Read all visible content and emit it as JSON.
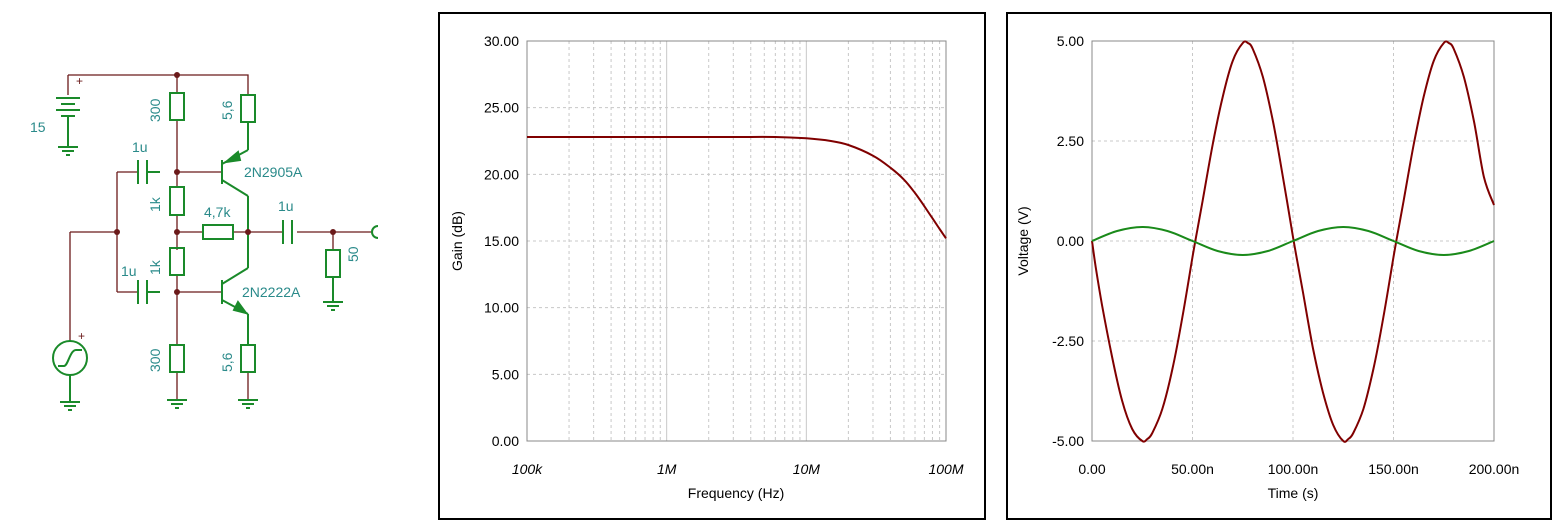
{
  "schematic": {
    "battery_label": "15",
    "battery_plus": "+",
    "source_plus": "+",
    "r_top_left": "300",
    "r_top_right": "5,6",
    "c_top": "1u",
    "q_top": "2N2905A",
    "r_mid_top": "1k",
    "r_feedback": "4,7k",
    "c_out": "1u",
    "r_load": "50",
    "c_bottom": "1u",
    "r_mid_bottom": "1k",
    "q_bottom": "2N2222A",
    "r_bottom_left": "300",
    "r_bottom_right": "5,6"
  },
  "colors": {
    "component": "#1a8a2a",
    "wire": "#6b1a1a",
    "label": "#2a8a8a",
    "series_gain": "#800000",
    "series_out": "#800000",
    "series_in": "#1a8a1a"
  },
  "chart_data": [
    {
      "type": "line",
      "xscale": "log",
      "xlabel": "Frequency (Hz)",
      "ylabel": "Gain (dB)",
      "xlim": [
        100000,
        100000000
      ],
      "ylim": [
        0,
        30
      ],
      "x_ticks": [
        100000,
        1000000,
        10000000,
        100000000
      ],
      "x_tick_labels": [
        "100k",
        "1M",
        "10M",
        "100M"
      ],
      "y_ticks": [
        0,
        5,
        10,
        15,
        20,
        25,
        30
      ],
      "y_tick_labels": [
        "0.00",
        "5.00",
        "10.00",
        "15.00",
        "20.00",
        "25.00",
        "30.00"
      ],
      "grid": true,
      "series": [
        {
          "x": [
            100000,
            1000000,
            3000000,
            6000000,
            10000000,
            15000000,
            20000000,
            30000000,
            40000000,
            50000000,
            60000000,
            70000000,
            80000000,
            90000000,
            100000000
          ],
          "y": [
            22.8,
            22.8,
            22.8,
            22.8,
            22.7,
            22.5,
            22.2,
            21.4,
            20.5,
            19.6,
            18.6,
            17.6,
            16.7,
            15.9,
            15.2
          ]
        }
      ]
    },
    {
      "type": "line",
      "xlabel": "Time (s)",
      "ylabel": "Voltage (V)",
      "xlim": [
        0,
        200
      ],
      "ylim": [
        -5,
        5
      ],
      "x_ticks": [
        0,
        50,
        100,
        150,
        200
      ],
      "x_tick_labels": [
        "0.00",
        "50.00n",
        "100.00n",
        "150.00n",
        "200.00n"
      ],
      "y_ticks": [
        -5,
        -2.5,
        0,
        2.5,
        5
      ],
      "y_tick_labels": [
        "-5.00",
        "-2.50",
        "0.00",
        "2.50",
        "5.00"
      ],
      "grid": true,
      "series": [
        {
          "x": [
            0,
            2,
            5,
            10,
            15,
            20,
            25,
            27.5,
            30,
            35,
            40,
            45,
            50,
            52.5,
            55,
            60,
            65,
            70,
            75,
            77.5,
            80,
            85,
            90,
            95,
            100,
            102.5,
            105,
            110,
            115,
            120,
            125,
            127.5,
            130,
            135,
            140,
            145,
            150,
            152.5,
            155,
            160,
            165,
            170,
            175,
            177.5,
            180,
            185,
            190,
            195,
            200
          ],
          "y": [
            0,
            -0.7,
            -1.6,
            -2.9,
            -4.0,
            -4.7,
            -5.0,
            -4.95,
            -4.8,
            -4.2,
            -3.2,
            -1.9,
            -0.4,
            0.3,
            1.0,
            2.4,
            3.6,
            4.5,
            4.95,
            4.95,
            4.8,
            4.1,
            3.0,
            1.6,
            0.1,
            -0.6,
            -1.3,
            -2.7,
            -3.8,
            -4.6,
            -5.0,
            -4.95,
            -4.8,
            -4.2,
            -3.2,
            -1.9,
            -0.4,
            0.3,
            1.0,
            2.4,
            3.6,
            4.5,
            4.95,
            4.95,
            4.8,
            4.1,
            3.0,
            1.6,
            0.9
          ]
        },
        {
          "x": [
            0,
            12.5,
            25,
            37.5,
            50,
            62.5,
            75,
            87.5,
            100,
            112.5,
            125,
            137.5,
            150,
            162.5,
            175,
            187.5,
            200
          ],
          "y": [
            0,
            0.25,
            0.35,
            0.25,
            0,
            -0.25,
            -0.35,
            -0.25,
            0,
            0.25,
            0.35,
            0.25,
            0,
            -0.25,
            -0.35,
            -0.25,
            0
          ]
        }
      ]
    }
  ]
}
